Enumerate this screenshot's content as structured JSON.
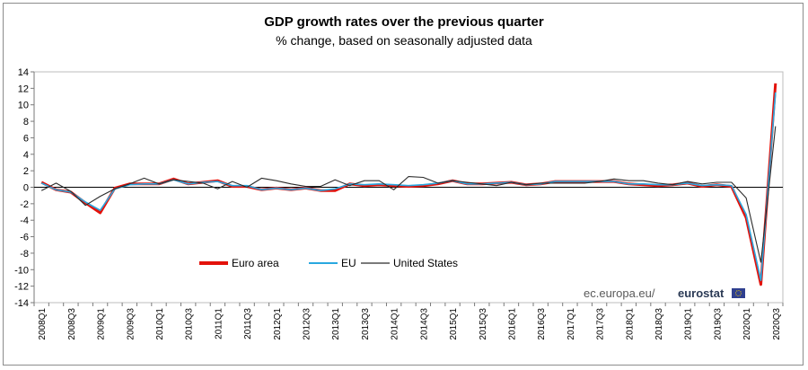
{
  "chart_data": {
    "type": "line",
    "title": "GDP growth rates over the previous quarter",
    "subtitle": "% change, based on seasonally adjusted data",
    "ylim": [
      -14,
      14
    ],
    "yticks": [
      -14,
      -12,
      -10,
      -8,
      -6,
      -4,
      -2,
      0,
      2,
      4,
      6,
      8,
      10,
      12,
      14
    ],
    "categories": [
      "2008Q1",
      "2008Q2",
      "2008Q3",
      "2008Q4",
      "2009Q1",
      "2009Q2",
      "2009Q3",
      "2009Q4",
      "2010Q1",
      "2010Q2",
      "2010Q3",
      "2010Q4",
      "2011Q1",
      "2011Q2",
      "2011Q3",
      "2011Q4",
      "2012Q1",
      "2012Q2",
      "2012Q3",
      "2012Q4",
      "2013Q1",
      "2013Q2",
      "2013Q3",
      "2013Q4",
      "2014Q1",
      "2014Q2",
      "2014Q3",
      "2014Q4",
      "2015Q1",
      "2015Q2",
      "2015Q3",
      "2015Q4",
      "2016Q1",
      "2016Q2",
      "2016Q3",
      "2016Q4",
      "2017Q1",
      "2017Q2",
      "2017Q3",
      "2017Q4",
      "2018Q1",
      "2018Q2",
      "2018Q3",
      "2018Q4",
      "2019Q1",
      "2019Q2",
      "2019Q3",
      "2019Q4",
      "2020Q1",
      "2020Q2",
      "2020Q3"
    ],
    "xtick_labels": [
      "2008Q1",
      "2008Q3",
      "2009Q1",
      "2009Q3",
      "2010Q1",
      "2010Q3",
      "2011Q1",
      "2011Q3",
      "2012Q1",
      "2012Q3",
      "2013Q1",
      "2013Q3",
      "2014Q1",
      "2014Q3",
      "2015Q1",
      "2015Q3",
      "2016Q1",
      "2016Q3",
      "2017Q1",
      "2017Q3",
      "2018Q1",
      "2018Q3",
      "2019Q1",
      "2019Q3",
      "2020Q1",
      "2020Q3"
    ],
    "series": [
      {
        "name": "Euro area",
        "color": "#e3120b",
        "values": [
          0.6,
          -0.3,
          -0.6,
          -1.9,
          -3.1,
          -0.1,
          0.4,
          0.4,
          0.4,
          1.0,
          0.4,
          0.6,
          0.8,
          0.1,
          0.1,
          -0.3,
          -0.1,
          -0.3,
          -0.1,
          -0.4,
          -0.4,
          0.4,
          0.2,
          0.3,
          0.2,
          0.1,
          0.2,
          0.4,
          0.8,
          0.4,
          0.4,
          0.5,
          0.6,
          0.3,
          0.4,
          0.7,
          0.7,
          0.7,
          0.7,
          0.7,
          0.4,
          0.3,
          0.2,
          0.3,
          0.5,
          0.1,
          0.3,
          0.1,
          -3.7,
          -11.8,
          12.6
        ]
      },
      {
        "name": "EU",
        "color": "#29a8e0",
        "values": [
          0.5,
          -0.3,
          -0.6,
          -1.8,
          -2.8,
          -0.2,
          0.3,
          0.4,
          0.4,
          0.9,
          0.4,
          0.6,
          0.7,
          0.2,
          0.2,
          -0.3,
          -0.1,
          -0.3,
          -0.1,
          -0.4,
          -0.2,
          0.4,
          0.3,
          0.4,
          0.3,
          0.2,
          0.3,
          0.5,
          0.8,
          0.4,
          0.4,
          0.5,
          0.6,
          0.3,
          0.4,
          0.7,
          0.7,
          0.7,
          0.7,
          0.7,
          0.4,
          0.4,
          0.3,
          0.3,
          0.5,
          0.2,
          0.3,
          0.2,
          -3.3,
          -11.3,
          11.5
        ]
      },
      {
        "name": "United States",
        "color": "#2b2b2b",
        "values": [
          -0.4,
          0.5,
          -0.5,
          -2.2,
          -1.1,
          -0.2,
          0.4,
          1.1,
          0.4,
          0.9,
          0.7,
          0.5,
          -0.2,
          0.7,
          0.0,
          1.1,
          0.8,
          0.4,
          0.1,
          0.1,
          0.9,
          0.2,
          0.8,
          0.8,
          -0.3,
          1.3,
          1.2,
          0.5,
          0.8,
          0.6,
          0.4,
          0.2,
          0.6,
          0.3,
          0.5,
          0.5,
          0.5,
          0.5,
          0.7,
          1.0,
          0.8,
          0.8,
          0.5,
          0.3,
          0.7,
          0.4,
          0.6,
          0.6,
          -1.3,
          -9.1,
          7.4
        ]
      }
    ],
    "source": {
      "text": "ec.europa.eu/",
      "brand": "eurostat"
    }
  }
}
